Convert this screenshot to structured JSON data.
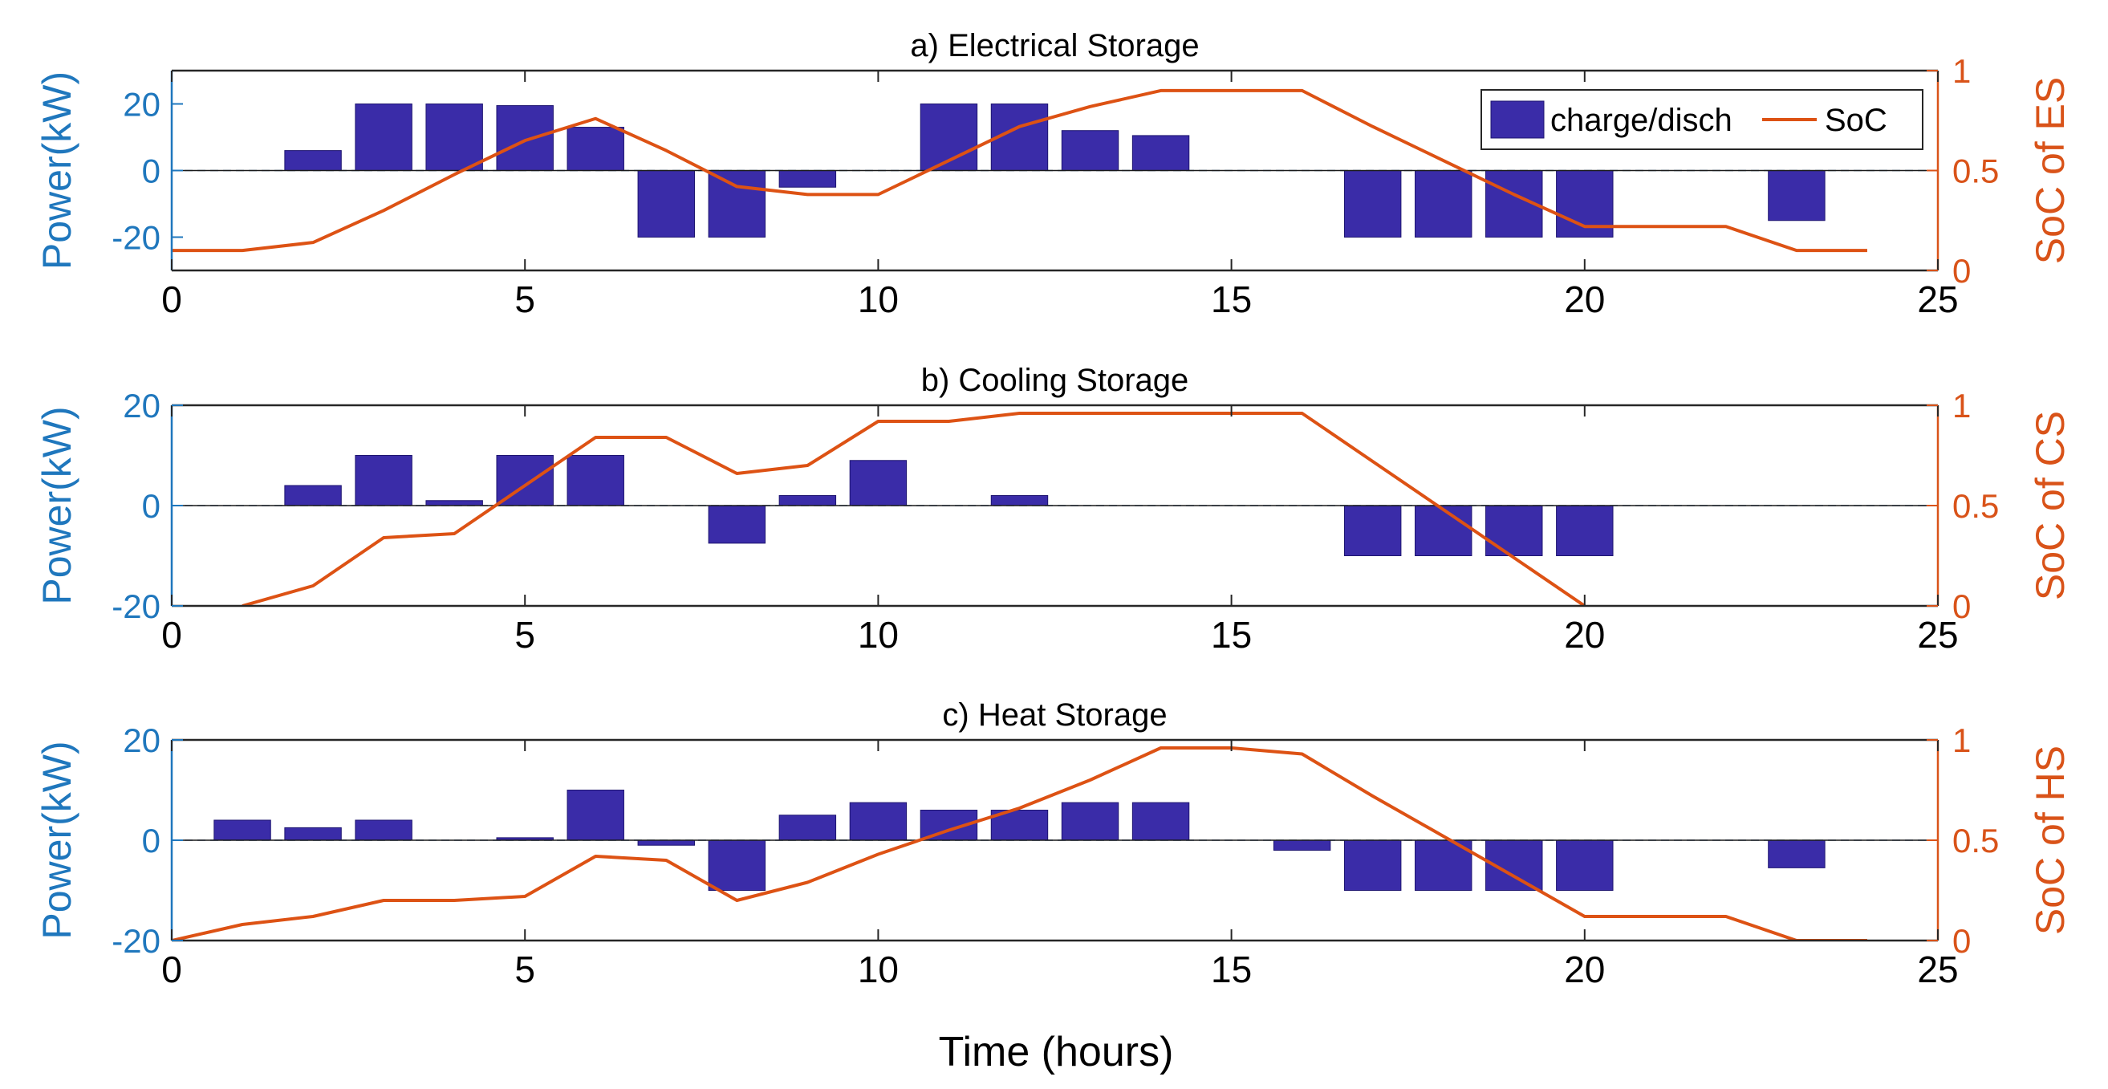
{
  "colors": {
    "bar": "#3A2CA8",
    "soc_line": "#DD5214",
    "left_axis": "#1F77BD",
    "right_axis": "#D95319",
    "zero_line": "#9FB5C8"
  },
  "xlabel": "Time (hours)",
  "legend": {
    "bar_label": "charge/disch",
    "line_label": "SoC"
  },
  "chart_data": [
    {
      "type": "bar",
      "title": "a) Electrical Storage",
      "xlim": [
        0,
        25
      ],
      "xticks": [
        0,
        5,
        10,
        15,
        20,
        25
      ],
      "ylabel": "Power(kW)",
      "ylim": [
        -30,
        30
      ],
      "yticks": [
        -20,
        0,
        20
      ],
      "y2label": "SoC of ES",
      "y2lim": [
        0,
        1
      ],
      "y2ticks": [
        0,
        0.5,
        1
      ],
      "bars": {
        "name": "charge/disch",
        "x": [
          2,
          3,
          4,
          5,
          6,
          7,
          8,
          9,
          11,
          12,
          13,
          14,
          17,
          18,
          19,
          20,
          23
        ],
        "values": [
          6,
          20,
          20,
          19.5,
          13,
          -20,
          -20,
          -5,
          20,
          20,
          12,
          10.5,
          -20,
          -20,
          -20,
          -20,
          -15
        ]
      },
      "line": {
        "name": "SoC",
        "x": [
          0,
          1,
          2,
          3,
          4,
          5,
          6,
          7,
          8,
          9,
          10,
          11,
          12,
          13,
          14,
          15,
          16,
          17,
          18,
          19,
          20,
          21,
          22,
          23,
          24
        ],
        "values": [
          0.1,
          0.1,
          0.14,
          0.3,
          0.48,
          0.65,
          0.76,
          0.6,
          0.42,
          0.38,
          0.38,
          0.55,
          0.72,
          0.82,
          0.9,
          0.9,
          0.9,
          0.72,
          0.55,
          0.38,
          0.22,
          0.22,
          0.22,
          0.1,
          0.1
        ]
      }
    },
    {
      "type": "bar",
      "title": "b) Cooling Storage",
      "xlim": [
        0,
        25
      ],
      "xticks": [
        0,
        5,
        10,
        15,
        20,
        25
      ],
      "ylabel": "Power(kW)",
      "ylim": [
        -20,
        20
      ],
      "yticks": [
        -20,
        0,
        20
      ],
      "y2label": "SoC of CS",
      "y2lim": [
        0,
        1
      ],
      "y2ticks": [
        0,
        0.5,
        1
      ],
      "bars": {
        "name": "charge/disch",
        "x": [
          2,
          3,
          4,
          5,
          6,
          8,
          9,
          10,
          12,
          17,
          18,
          19,
          20
        ],
        "values": [
          4,
          10,
          1,
          10,
          10,
          -7.5,
          2,
          9,
          2,
          -10,
          -10,
          -10,
          -10
        ]
      },
      "line": {
        "name": "SoC",
        "x": [
          1,
          2,
          3,
          4,
          5,
          6,
          7,
          8,
          9,
          10,
          11,
          12,
          13,
          14,
          15,
          16,
          17,
          18,
          19,
          20
        ],
        "values": [
          0,
          0.1,
          0.34,
          0.36,
          0.6,
          0.84,
          0.84,
          0.66,
          0.7,
          0.92,
          0.92,
          0.96,
          0.96,
          0.96,
          0.96,
          0.96,
          0.72,
          0.48,
          0.24,
          0
        ]
      }
    },
    {
      "type": "bar",
      "title": "c) Heat Storage",
      "xlim": [
        0,
        25
      ],
      "xticks": [
        0,
        5,
        10,
        15,
        20,
        25
      ],
      "ylabel": "Power(kW)",
      "ylim": [
        -20,
        20
      ],
      "yticks": [
        -20,
        0,
        20
      ],
      "y2label": "SoC of HS",
      "y2lim": [
        0,
        1
      ],
      "y2ticks": [
        0,
        0.5,
        1
      ],
      "bars": {
        "name": "charge/disch",
        "x": [
          1,
          2,
          3,
          5,
          6,
          7,
          8,
          9,
          10,
          11,
          12,
          13,
          14,
          16,
          17,
          18,
          19,
          20,
          23
        ],
        "values": [
          4,
          2.5,
          4,
          0.5,
          10,
          -1,
          -10,
          5,
          7.5,
          6,
          6,
          7.5,
          7.5,
          -2,
          -10,
          -10,
          -10,
          -10,
          -5.5
        ]
      },
      "line": {
        "name": "SoC",
        "x": [
          0,
          1,
          2,
          3,
          4,
          5,
          6,
          7,
          8,
          9,
          10,
          11,
          12,
          13,
          14,
          15,
          16,
          17,
          18,
          19,
          20,
          21,
          22,
          23,
          24
        ],
        "values": [
          0,
          0.08,
          0.12,
          0.2,
          0.2,
          0.22,
          0.42,
          0.4,
          0.2,
          0.29,
          0.43,
          0.55,
          0.66,
          0.8,
          0.96,
          0.96,
          0.93,
          0.72,
          0.52,
          0.32,
          0.12,
          0.12,
          0.12,
          0,
          0
        ]
      }
    }
  ]
}
